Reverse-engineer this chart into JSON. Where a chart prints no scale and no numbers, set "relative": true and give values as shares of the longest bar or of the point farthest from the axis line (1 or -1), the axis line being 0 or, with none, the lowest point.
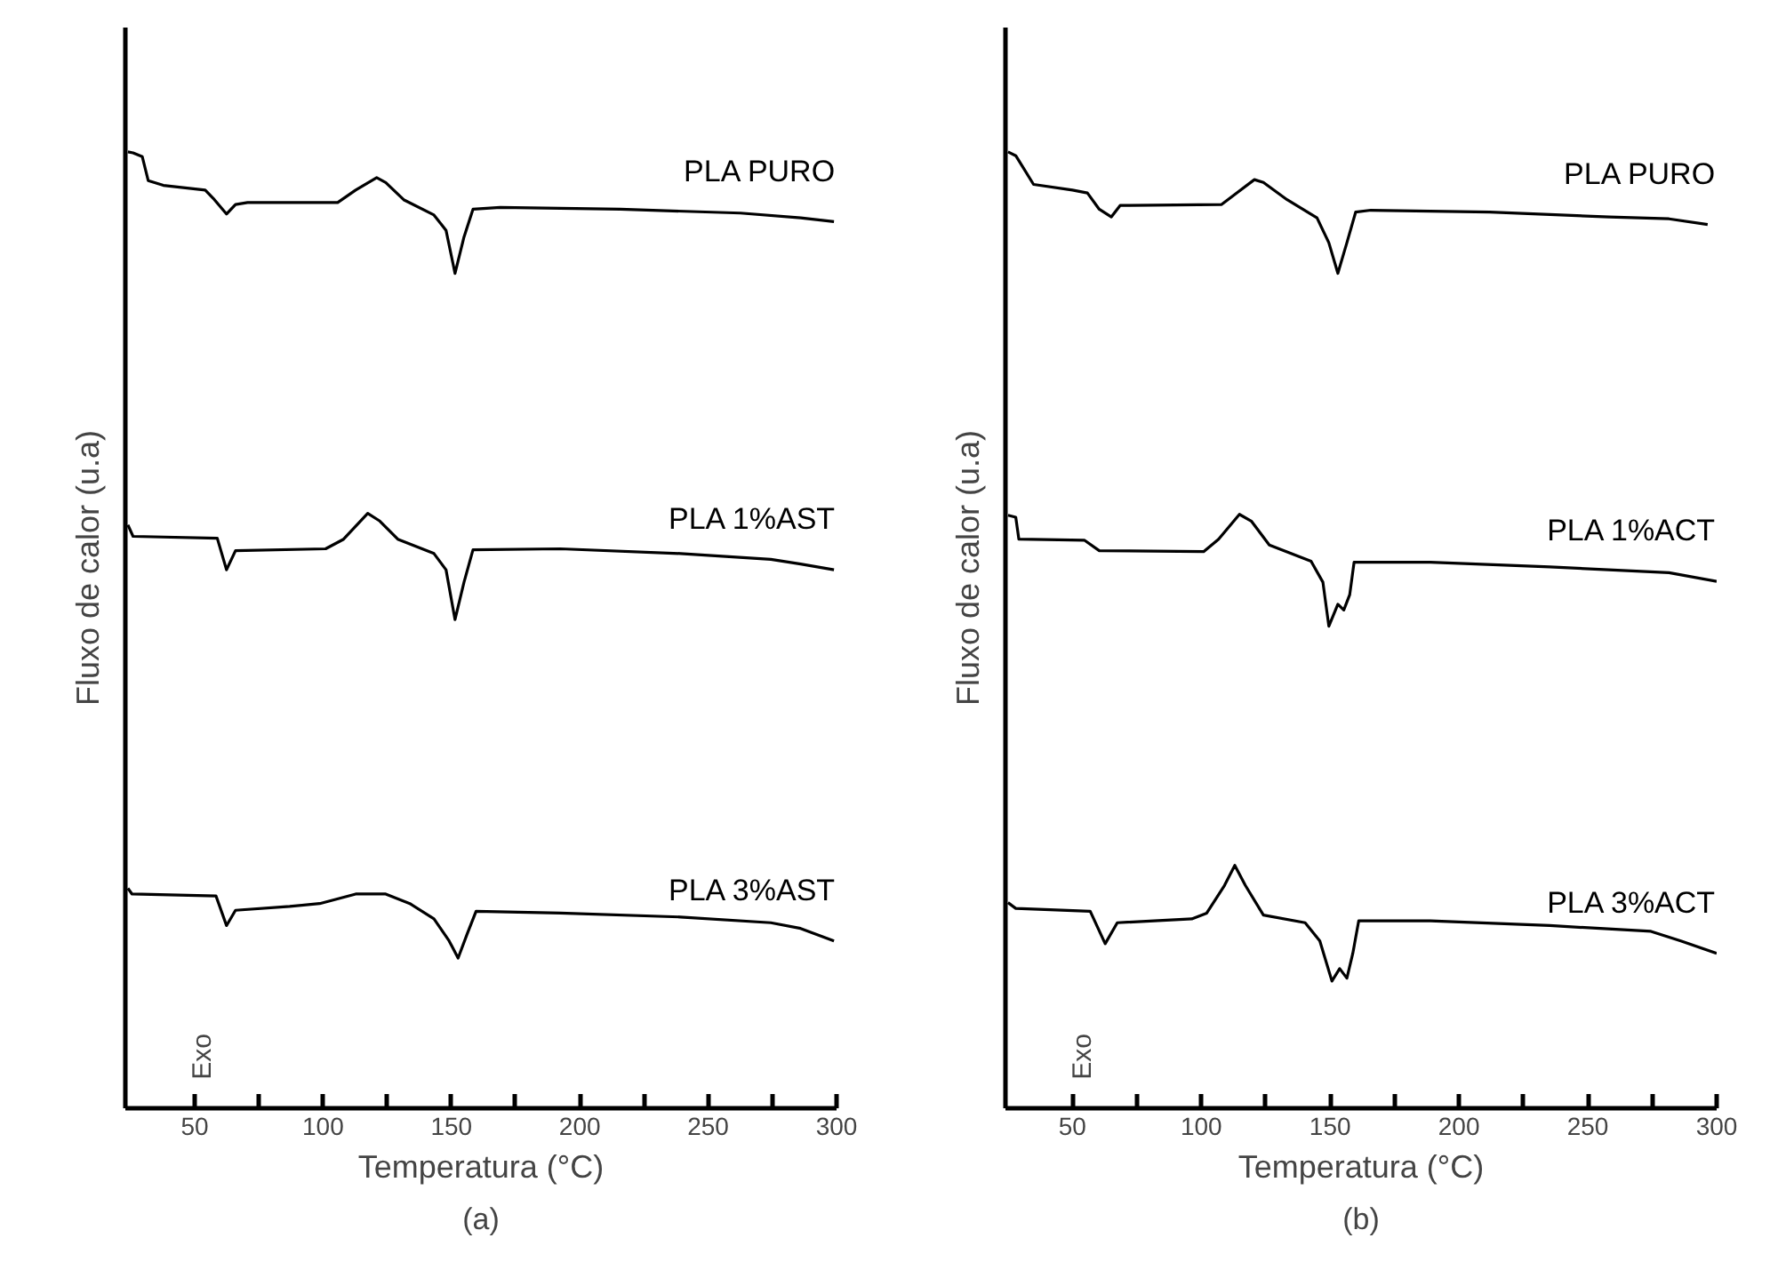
{
  "chart_data": [
    {
      "type": "line",
      "title": "(a)",
      "xlabel": "Temperatura (°C)",
      "ylabel": "Fluxo de calor (u.a)",
      "annotations": [
        "Exo"
      ],
      "relative": true,
      "grid": false,
      "line_style": "solid",
      "xlim": [
        23,
        300
      ],
      "xticks": [
        50,
        {
          "value": 75,
          "label": null
        },
        100,
        {
          "value": 125,
          "label": null
        },
        150,
        {
          "value": 175,
          "label": null
        },
        200,
        {
          "value": 225,
          "label": null
        },
        250,
        {
          "value": 275,
          "label": null
        },
        300
      ],
      "series": [
        {
          "name": "PLA PURO",
          "color": "#000000",
          "x": [
            24,
            26.0,
            29.6,
            31.9,
            37.8,
            54.1,
            57.7,
            62.4,
            65.9,
            70.6,
            105.7,
            112.7,
            120.9,
            124.4,
            131.4,
            143.2,
            147.9,
            151.4,
            154.9,
            158.4,
            169.0,
            215.8,
            262.6,
            286.0,
            299
          ],
          "values": [
            1.0,
            0.999,
            0.995,
            0.97,
            0.965,
            0.96,
            0.95,
            0.935,
            0.945,
            0.947,
            0.947,
            0.96,
            0.973,
            0.968,
            0.95,
            0.934,
            0.918,
            0.873,
            0.911,
            0.94,
            0.942,
            0.94,
            0.936,
            0.931,
            0.927
          ]
        },
        {
          "name": "PLA 1%AST",
          "color": "#000000",
          "x": [
            24,
            26.0,
            58.8,
            62.4,
            65.9,
            101.0,
            108.0,
            117.4,
            122.1,
            129.1,
            143.2,
            147.9,
            151.4,
            154.9,
            158.4,
            192.4,
            239.2,
            274.4,
            286.0,
            299
          ],
          "values": [
            0.61,
            0.598,
            0.596,
            0.563,
            0.583,
            0.585,
            0.595,
            0.622,
            0.614,
            0.595,
            0.58,
            0.563,
            0.511,
            0.55,
            0.584,
            0.585,
            0.58,
            0.574,
            0.569,
            0.563
          ]
        },
        {
          "name": "PLA 3%AST",
          "color": "#000000",
          "x": [
            24,
            25.6,
            58.3,
            62.4,
            65.9,
            87.0,
            98.7,
            112.7,
            124.4,
            133.8,
            143.2,
            149.1,
            152.6,
            156.1,
            159.6,
            192.4,
            239.2,
            274.4,
            286.0,
            299
          ],
          "values": [
            0.23,
            0.224,
            0.222,
            0.191,
            0.207,
            0.211,
            0.214,
            0.224,
            0.224,
            0.214,
            0.198,
            0.175,
            0.157,
            0.182,
            0.206,
            0.204,
            0.2,
            0.194,
            0.188,
            0.175
          ]
        }
      ]
    },
    {
      "type": "line",
      "title": "(b)",
      "xlabel": "Temperatura (°C)",
      "ylabel": "Fluxo de calor (u.a)",
      "annotations": [
        "Exo"
      ],
      "relative": true,
      "grid": false,
      "line_style": "solid",
      "xlim": [
        24,
        300
      ],
      "xticks": [
        50,
        {
          "value": 75,
          "label": null
        },
        100,
        {
          "value": 125,
          "label": null
        },
        150,
        {
          "value": 175,
          "label": null
        },
        200,
        {
          "value": 225,
          "label": null
        },
        250,
        {
          "value": 275,
          "label": null
        },
        300
      ],
      "series": [
        {
          "name": "PLA PURO",
          "color": "#000000",
          "x": [
            25,
            28.0,
            30.3,
            34.9,
            50,
            55.8,
            60.4,
            65.1,
            68.5,
            107.9,
            113.7,
            120.6,
            124.1,
            133.3,
            144.9,
            149.5,
            153.0,
            156.5,
            159.9,
            165.8,
            212.0,
            258.3,
            281.5,
            296.5
          ],
          "values": [
            1.0,
            0.996,
            0.986,
            0.966,
            0.96,
            0.957,
            0.94,
            0.932,
            0.944,
            0.945,
            0.957,
            0.971,
            0.968,
            0.95,
            0.931,
            0.905,
            0.873,
            0.905,
            0.937,
            0.939,
            0.937,
            0.932,
            0.93,
            0.924
          ]
        },
        {
          "name": "PLA 1%ACT",
          "color": "#000000",
          "x": [
            25,
            28.0,
            29.2,
            54.6,
            60.4,
            100.9,
            106.7,
            114.8,
            119.4,
            126.4,
            142.6,
            147.2,
            149.5,
            153.0,
            155.3,
            157.6,
            159.3,
            188.9,
            235.2,
            281.5,
            300
          ],
          "values": [
            0.62,
            0.618,
            0.595,
            0.594,
            0.583,
            0.582,
            0.595,
            0.621,
            0.614,
            0.589,
            0.572,
            0.55,
            0.504,
            0.527,
            0.521,
            0.537,
            0.571,
            0.571,
            0.566,
            0.56,
            0.551
          ]
        },
        {
          "name": "PLA 3%ACT",
          "color": "#000000",
          "x": [
            25,
            28.0,
            56.9,
            62.7,
            67.4,
            96.3,
            102.1,
            109.0,
            113.0,
            117.1,
            124.1,
            140.3,
            146.0,
            150.7,
            153.7,
            156.5,
            158.8,
            161.1,
            188.9,
            235.2,
            274.5,
            286.1,
            300
          ],
          "values": [
            0.215,
            0.209,
            0.206,
            0.172,
            0.194,
            0.198,
            0.204,
            0.233,
            0.254,
            0.233,
            0.202,
            0.194,
            0.175,
            0.133,
            0.146,
            0.136,
            0.162,
            0.196,
            0.196,
            0.191,
            0.185,
            0.175,
            0.162
          ]
        }
      ]
    }
  ]
}
